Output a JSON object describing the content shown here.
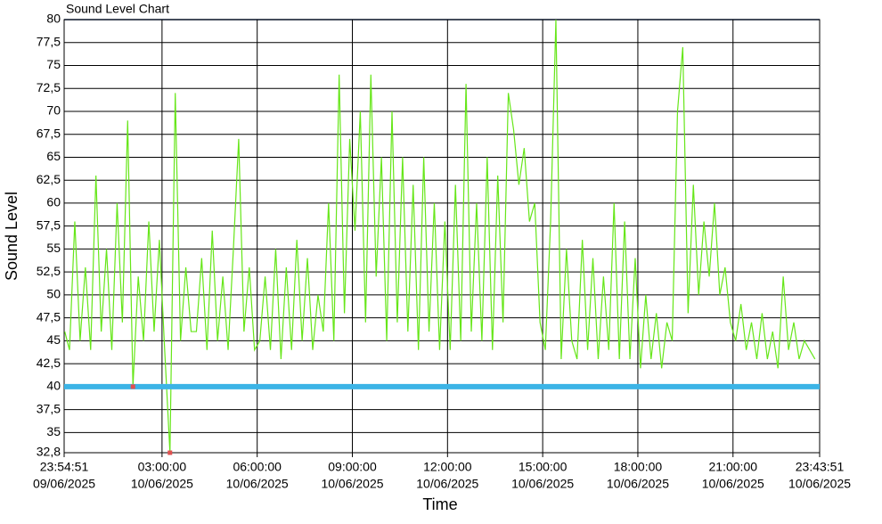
{
  "chart_data": {
    "type": "line",
    "title": "Sound Level Chart",
    "x_label": "Time",
    "y_label": "Sound Level",
    "ylim": [
      32.8,
      80
    ],
    "yticks": [
      {
        "value": 32.8,
        "label": "32,8"
      },
      35,
      {
        "value": 37.5,
        "label": "37,5"
      },
      40,
      {
        "value": 42.5,
        "label": "42,5"
      },
      45,
      {
        "value": 47.5,
        "label": "47,5"
      },
      50,
      {
        "value": 52.5,
        "label": "52,5"
      },
      55,
      {
        "value": 57.5,
        "label": "57,5"
      },
      60,
      {
        "value": 62.5,
        "label": "62,5"
      },
      65,
      {
        "value": 67.5,
        "label": "67,5"
      },
      70,
      {
        "value": 72.5,
        "label": "72,5"
      },
      75,
      {
        "value": 77.5,
        "label": "77,5"
      },
      80
    ],
    "xlim": [
      "2025-06-09T23:54:51",
      "2025-06-10T23:43:51"
    ],
    "xticks": [
      {
        "value": "2025-06-09T23:54:51",
        "label": [
          "23:54:51",
          "09/06/2025"
        ]
      },
      {
        "value": "2025-06-10T03:00:00",
        "label": [
          "03:00:00",
          "10/06/2025"
        ]
      },
      {
        "value": "2025-06-10T06:00:00",
        "label": [
          "06:00:00",
          "10/06/2025"
        ]
      },
      {
        "value": "2025-06-10T09:00:00",
        "label": [
          "09:00:00",
          "10/06/2025"
        ]
      },
      {
        "value": "2025-06-10T12:00:00",
        "label": [
          "12:00:00",
          "10/06/2025"
        ]
      },
      {
        "value": "2025-06-10T15:00:00",
        "label": [
          "15:00:00",
          "10/06/2025"
        ]
      },
      {
        "value": "2025-06-10T18:00:00",
        "label": [
          "18:00:00",
          "10/06/2025"
        ]
      },
      {
        "value": "2025-06-10T21:00:00",
        "label": [
          "21:00:00",
          "10/06/2025"
        ]
      },
      {
        "value": "2025-06-10T23:43:51",
        "label": [
          "23:43:51",
          "10/06/2025"
        ]
      }
    ],
    "grid": true,
    "reference_line": {
      "value": 40,
      "color": "#3cb4e6"
    },
    "markers": [
      {
        "x": "2025-06-10T02:05",
        "y": 40,
        "color": "#e05050"
      },
      {
        "x": "2025-06-10T03:15",
        "y": 32.8,
        "color": "#e05050"
      }
    ],
    "series": [
      {
        "name": "Sound Level",
        "color": "#66e619",
        "x": [
          "2025-06-09T23:56",
          "2025-06-10T00:05",
          "2025-06-10T00:15",
          "2025-06-10T00:25",
          "2025-06-10T00:35",
          "2025-06-10T00:45",
          "2025-06-10T00:55",
          "2025-06-10T01:05",
          "2025-06-10T01:15",
          "2025-06-10T01:25",
          "2025-06-10T01:35",
          "2025-06-10T01:45",
          "2025-06-10T01:55",
          "2025-06-10T02:05",
          "2025-06-10T02:15",
          "2025-06-10T02:25",
          "2025-06-10T02:35",
          "2025-06-10T02:45",
          "2025-06-10T02:55",
          "2025-06-10T03:05",
          "2025-06-10T03:15",
          "2025-06-10T03:25",
          "2025-06-10T03:35",
          "2025-06-10T03:45",
          "2025-06-10T03:55",
          "2025-06-10T04:05",
          "2025-06-10T04:15",
          "2025-06-10T04:25",
          "2025-06-10T04:35",
          "2025-06-10T04:45",
          "2025-06-10T04:55",
          "2025-06-10T05:05",
          "2025-06-10T05:15",
          "2025-06-10T05:25",
          "2025-06-10T05:35",
          "2025-06-10T05:45",
          "2025-06-10T05:55",
          "2025-06-10T06:05",
          "2025-06-10T06:15",
          "2025-06-10T06:25",
          "2025-06-10T06:35",
          "2025-06-10T06:45",
          "2025-06-10T06:55",
          "2025-06-10T07:05",
          "2025-06-10T07:15",
          "2025-06-10T07:25",
          "2025-06-10T07:35",
          "2025-06-10T07:45",
          "2025-06-10T07:55",
          "2025-06-10T08:05",
          "2025-06-10T08:15",
          "2025-06-10T08:25",
          "2025-06-10T08:35",
          "2025-06-10T08:45",
          "2025-06-10T08:55",
          "2025-06-10T09:05",
          "2025-06-10T09:15",
          "2025-06-10T09:25",
          "2025-06-10T09:35",
          "2025-06-10T09:45",
          "2025-06-10T09:55",
          "2025-06-10T10:05",
          "2025-06-10T10:15",
          "2025-06-10T10:25",
          "2025-06-10T10:35",
          "2025-06-10T10:45",
          "2025-06-10T10:55",
          "2025-06-10T11:05",
          "2025-06-10T11:15",
          "2025-06-10T11:25",
          "2025-06-10T11:35",
          "2025-06-10T11:45",
          "2025-06-10T11:55",
          "2025-06-10T12:05",
          "2025-06-10T12:15",
          "2025-06-10T12:25",
          "2025-06-10T12:35",
          "2025-06-10T12:45",
          "2025-06-10T12:55",
          "2025-06-10T13:05",
          "2025-06-10T13:15",
          "2025-06-10T13:25",
          "2025-06-10T13:35",
          "2025-06-10T13:45",
          "2025-06-10T13:55",
          "2025-06-10T14:05",
          "2025-06-10T14:15",
          "2025-06-10T14:25",
          "2025-06-10T14:35",
          "2025-06-10T14:45",
          "2025-06-10T14:55",
          "2025-06-10T15:05",
          "2025-06-10T15:15",
          "2025-06-10T15:25",
          "2025-06-10T15:35",
          "2025-06-10T15:45",
          "2025-06-10T15:55",
          "2025-06-10T16:05",
          "2025-06-10T16:15",
          "2025-06-10T16:25",
          "2025-06-10T16:35",
          "2025-06-10T16:45",
          "2025-06-10T16:55",
          "2025-06-10T17:05",
          "2025-06-10T17:15",
          "2025-06-10T17:25",
          "2025-06-10T17:35",
          "2025-06-10T17:45",
          "2025-06-10T17:55",
          "2025-06-10T18:05",
          "2025-06-10T18:15",
          "2025-06-10T18:25",
          "2025-06-10T18:35",
          "2025-06-10T18:45",
          "2025-06-10T18:55",
          "2025-06-10T19:05",
          "2025-06-10T19:15",
          "2025-06-10T19:25",
          "2025-06-10T19:35",
          "2025-06-10T19:45",
          "2025-06-10T19:55",
          "2025-06-10T20:05",
          "2025-06-10T20:15",
          "2025-06-10T20:25",
          "2025-06-10T20:35",
          "2025-06-10T20:45",
          "2025-06-10T20:55",
          "2025-06-10T21:05",
          "2025-06-10T21:15",
          "2025-06-10T21:25",
          "2025-06-10T21:35",
          "2025-06-10T21:45",
          "2025-06-10T21:55",
          "2025-06-10T22:05",
          "2025-06-10T22:15",
          "2025-06-10T22:25",
          "2025-06-10T22:35",
          "2025-06-10T22:45",
          "2025-06-10T22:55",
          "2025-06-10T23:05",
          "2025-06-10T23:15",
          "2025-06-10T23:25",
          "2025-06-10T23:35"
        ],
        "values": [
          46,
          44,
          58,
          45,
          53,
          44,
          63,
          46,
          55,
          44,
          60,
          47,
          69,
          40,
          52,
          45,
          58,
          46,
          56,
          44,
          32.8,
          72,
          45,
          53,
          46,
          46,
          54,
          44,
          57,
          45,
          52,
          44,
          55,
          67,
          46,
          53,
          44,
          45,
          52,
          44,
          55,
          43,
          53,
          44,
          56,
          45,
          54,
          44,
          50,
          46,
          60,
          45,
          74,
          48,
          67,
          57,
          70,
          47,
          74,
          52,
          65,
          45,
          70,
          47,
          65,
          46,
          62,
          44,
          65,
          46,
          60,
          44,
          58,
          44,
          62,
          45,
          73,
          46,
          60,
          45,
          65,
          44,
          63,
          47,
          72,
          68,
          62,
          66,
          58,
          60,
          47,
          44,
          58,
          80,
          43,
          55,
          45,
          43,
          56,
          44,
          54,
          43,
          52,
          44,
          60,
          43,
          58,
          43,
          54,
          42,
          50,
          43,
          48,
          42,
          47,
          45,
          70,
          77,
          48,
          62,
          50,
          58,
          52,
          60,
          50,
          53,
          47,
          45,
          49,
          44,
          47,
          43,
          48,
          43,
          46,
          42,
          52,
          44,
          47,
          43,
          45,
          44,
          43
        ]
      }
    ]
  }
}
